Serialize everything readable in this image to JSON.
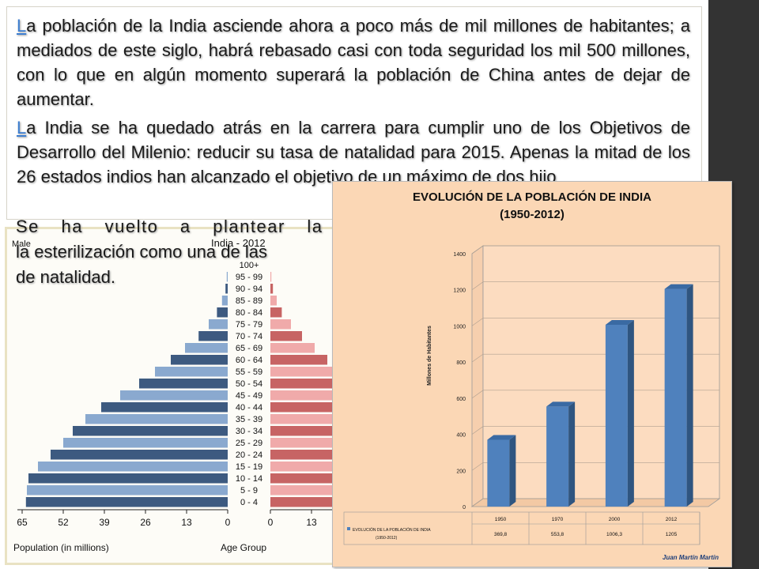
{
  "slide": {
    "para1": {
      "first": "L",
      "rest": "a población de la India asciende ahora a poco más de mil millones de habitantes; a mediados de este siglo, habrá rebasado casi con toda seguridad los mil 500 millones, con lo que en algún momento superará la población de China antes de dejar de aumentar."
    },
    "para2": {
      "first": "L",
      "rest": "a India se ha quedado atrás en la carrera para cumplir uno de los Objetivos de Desarrollo del Milenio: reducir su tasa de natalidad para 2015. Apenas la mitad de los 26 estados indios han alcanzado el objetivo de un máximo de dos hijo"
    },
    "overflow_lines": [
      "Se ha vuelto a plantear la",
      "la esterilización como una de las",
      "de natalidad."
    ],
    "sidebar_color": "#333333",
    "link_color": "#3e7fd1"
  },
  "chart_data": [
    {
      "type": "bar",
      "orientation": "horizontal",
      "title": "India - 2012",
      "legend_left": "Male",
      "xlabel": "Population (in millions)",
      "center_label": "Age Group",
      "categories": [
        "100+",
        "95 - 99",
        "90 - 94",
        "85 - 89",
        "80 - 84",
        "75 - 79",
        "70 - 74",
        "65 - 69",
        "60 - 64",
        "55 - 59",
        "50 - 54",
        "45 - 49",
        "40 - 44",
        "35 - 39",
        "30 - 34",
        "25 - 29",
        "20 - 24",
        "15 - 19",
        "10 - 14",
        "5 - 9",
        "0 - 4"
      ],
      "x_ticks_left": [
        "65",
        "52",
        "39",
        "26",
        "13",
        "0"
      ],
      "x_ticks_right": [
        "0",
        "13"
      ],
      "xlim": [
        0,
        65
      ],
      "series": [
        {
          "name": "Male",
          "values": [
            0,
            0.3,
            0.7,
            1.8,
            3.4,
            6.0,
            9.2,
            13.5,
            18.0,
            23.0,
            28.0,
            34.0,
            40.0,
            45.0,
            49.0,
            52.0,
            56.0,
            60.0,
            63.0,
            63.5,
            63.8
          ]
        },
        {
          "values": [
            0,
            0.3,
            0.8,
            2.0,
            3.6,
            6.5,
            10.0,
            14.0,
            18.0,
            22.0,
            27.0,
            32.0,
            38.0,
            42.0,
            46.0,
            49.0,
            53.0,
            56.0,
            58.0,
            59.0,
            60.0
          ]
        }
      ],
      "colors": {
        "male_dark": "#3d5a80",
        "male_light": "#8aa9cf",
        "female_dark": "#c76464",
        "female_light": "#f0aaaa"
      }
    },
    {
      "type": "bar",
      "title": "EVOLUCIÓN DE LA  POBLACIÓN DE INDIA",
      "subtitle": "(1950-2012)",
      "ylabel": "Millones de Habitantes",
      "categories": [
        "1950",
        "1970",
        "2000",
        "2012"
      ],
      "values": [
        369.8,
        553.8,
        1006.3,
        1205
      ],
      "value_labels": [
        "369,8",
        "553,8",
        "1006,3",
        "1205"
      ],
      "ylim": [
        0,
        1400
      ],
      "y_ticks": [
        0,
        200,
        400,
        600,
        800,
        1000,
        1200,
        1400
      ],
      "legend": "EVOLUCIÓN DE LA POBLACIÓN DE INDIA",
      "legend_sub": "(1950-2012)",
      "credit": "Juan Martín Martín",
      "bar_color": "#4f81bd",
      "background": "#fbd7b5"
    }
  ]
}
